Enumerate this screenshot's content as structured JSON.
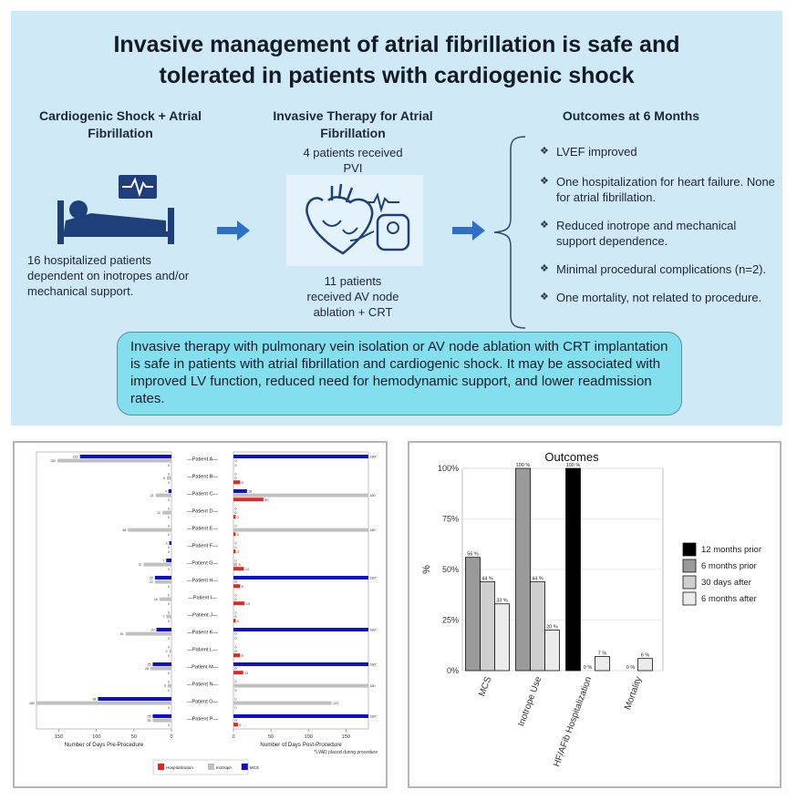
{
  "infographic": {
    "title_line1": "Invasive management of atrial fibrillation is safe and",
    "title_line2": "tolerated in patients with cardiogenic shock",
    "col1_heading_1": "Cardiogenic Shock + Atrial",
    "col1_heading_2": "Fibrillation",
    "col1_text_1": "16 hospitalized patients",
    "col1_text_2": "dependent on inotropes and/or",
    "col1_text_3": "mechanical support.",
    "col2_heading_1": "Invasive Therapy for Atrial",
    "col2_heading_2": "Fibrillation",
    "col2_top_1": "4 patients received",
    "col2_top_2": "PVI",
    "col2_bottom_1": "11 patients",
    "col2_bottom_2": "received AV node",
    "col2_bottom_3": "ablation + CRT",
    "col3_heading": "Outcomes at 6 Months",
    "outcomes": [
      "LVEF  improved",
      "One hospitalization for heart failure. None for atrial fibrillation.",
      "Reduced inotrope and mechanical support dependence.",
      "Minimal procedural complications (n=2).",
      "One mortality, not related to procedure."
    ],
    "summary": "Invasive therapy with pulmonary vein isolation or AV node ablation with CRT implantation is safe in patients with atrial fibrillation and cardiogenic shock. It may be associated with improved LV function, reduced need for hemodynamic support, and lower readmission rates."
  },
  "chart_data": [
    {
      "type": "bar",
      "orientation": "horizontal",
      "categories": [
        "Patient A",
        "Patient B",
        "Patient C",
        "Patient D",
        "Patient E",
        "Patient F",
        "Patient G",
        "Patient H",
        "Patient I",
        "Patient J",
        "Patient K",
        "Patient L",
        "Patient M",
        "Patient N",
        "Patient O",
        "Patient P"
      ],
      "pre": {
        "xlabel": "Number of Days Pre-Procedure",
        "ticks": [
          150,
          100,
          50,
          0
        ],
        "series": [
          {
            "name": "MCS",
            "values": [
              122,
              0,
              4,
              0,
              0,
              3,
              7,
              22,
              0,
              0,
              20,
              0,
              25,
              0,
              98,
              25
            ]
          },
          {
            "name": "Inotrope",
            "values": [
              152,
              6,
              21,
              12,
              58,
              0,
              37,
              22,
              16,
              7,
              61,
              3,
              28,
              5,
              180,
              25
            ]
          },
          {
            "name": "Hospitalization",
            "values": [
              0,
              0,
              0,
              0,
              0,
              0,
              0,
              0,
              0,
              0,
              0,
              0,
              0,
              0,
              0,
              0
            ]
          }
        ]
      },
      "post": {
        "xlabel": "Number of Days Post-Procedure",
        "footnote": "*LVAD placed during procedure",
        "ticks": [
          0,
          50,
          100,
          150
        ],
        "series": [
          {
            "name": "MCS",
            "values": [
              180,
              0,
              18,
              0,
              0,
              0,
              0,
              180,
              0,
              0,
              180,
              0,
              180,
              0,
              0,
              180
            ]
          },
          {
            "name": "Inotrope",
            "values": [
              0,
              0,
              180,
              0,
              180,
              0,
              5,
              0,
              0,
              0,
              0,
              0,
              0,
              180,
              131,
              0
            ]
          },
          {
            "name": "Hospitalization",
            "values": [
              0,
              9,
              40,
              3,
              3,
              3,
              14,
              9,
              15,
              3,
              0,
              9,
              13,
              0,
              0,
              6
            ]
          }
        ],
        "asterisk_rows": [
          0,
          7,
          10,
          12,
          15
        ]
      },
      "legend": [
        "Hospitalization",
        "Inotrope",
        "MCS"
      ],
      "colors": {
        "MCS": "#1010cc",
        "Inotrope": "#c0c0c0",
        "Hospitalization": "#dd2a20"
      }
    },
    {
      "type": "bar",
      "title": "Outcomes",
      "ylabel": "%",
      "categories": [
        "MCS",
        "Inotrope Use",
        "HF/AFib Hospitalization",
        "Mortality"
      ],
      "series": [
        {
          "name": "12 months prior",
          "color": "#000000",
          "values": [
            null,
            null,
            100,
            null
          ]
        },
        {
          "name": "6 months prior",
          "color": "#9a9a9a",
          "values": [
            56,
            100,
            null,
            null
          ]
        },
        {
          "name": "30 days after",
          "color": "#cfcfcf",
          "values": [
            44,
            44,
            0,
            0
          ]
        },
        {
          "name": "6 months after",
          "color": "#ececec",
          "values": [
            33,
            20,
            7,
            6
          ]
        }
      ],
      "ylim": [
        0,
        100
      ],
      "yticks": [
        "0%",
        "25%",
        "50%",
        "75%",
        "100%"
      ],
      "legend_position": "right"
    }
  ]
}
